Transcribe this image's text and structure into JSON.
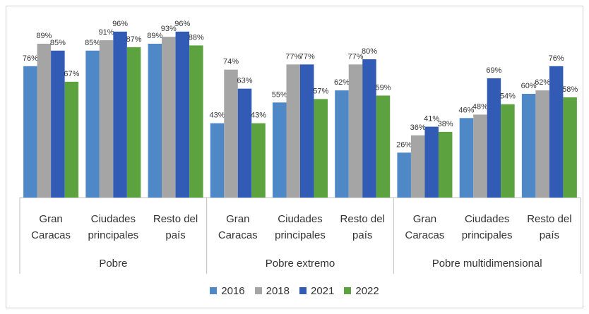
{
  "chart_data": {
    "type": "bar",
    "groups": [
      {
        "name": "Pobre",
        "categories": [
          "Gran Caracas",
          "Ciudades principales",
          "Resto del país"
        ]
      },
      {
        "name": "Pobre extremo",
        "categories": [
          "Gran Caracas",
          "Ciudades principales",
          "Resto del país"
        ]
      },
      {
        "name": "Pobre multidimensional",
        "categories": [
          "Gran Caracas",
          "Ciudades principales",
          "Resto del país"
        ]
      }
    ],
    "series": [
      {
        "name": "2016",
        "color": "#4e88c7",
        "values": [
          76,
          85,
          89,
          43,
          55,
          62,
          26,
          46,
          60
        ],
        "value_labels": [
          "76%",
          "85%",
          "89%",
          "43%",
          "55%",
          "62%",
          "26%",
          "46%",
          "60%"
        ]
      },
      {
        "name": "2018",
        "color": "#a5a5a5",
        "values": [
          89,
          91,
          93,
          74,
          77,
          77,
          36,
          48,
          62
        ],
        "value_labels": [
          "89%",
          "91%",
          "93%",
          "74%",
          "77%",
          "77%",
          "36%",
          "48%",
          "62%"
        ]
      },
      {
        "name": "2021",
        "color": "#315bb5",
        "values": [
          85,
          96,
          96,
          63,
          77,
          80,
          41,
          69,
          76
        ],
        "value_labels": [
          "85%",
          "96%",
          "96%",
          "63%",
          "77%",
          "80%",
          "41%",
          "69%",
          "76%"
        ]
      },
      {
        "name": "2022",
        "color": "#5ca23f",
        "values": [
          67,
          87,
          88,
          43,
          57,
          59,
          38,
          54,
          58
        ],
        "value_labels": [
          "67%",
          "87%",
          "88%",
          "43%",
          "57%",
          "59%",
          "38%",
          "54%",
          "58%"
        ]
      }
    ],
    "ylim": [
      0,
      100
    ]
  }
}
